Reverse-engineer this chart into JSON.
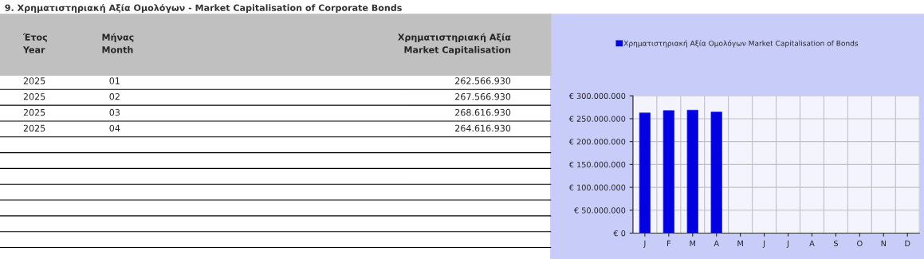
{
  "chart_data": {
    "type": "bar",
    "title": "9. Χρηματιστηριακή Αξία Ομολόγων - Market Capitalisation of Corporate Bonds",
    "categories": [
      "J",
      "F",
      "M",
      "A",
      "M",
      "J",
      "J",
      "A",
      "S",
      "O",
      "N",
      "D"
    ],
    "series": [
      {
        "name": "Χρηματιστηριακή Αξία Ομολόγων Market Capitalisation of Bonds",
        "color": "#0000e0",
        "values": [
          262566930,
          267566930,
          268616930,
          264616930,
          null,
          null,
          null,
          null,
          null,
          null,
          null,
          null
        ]
      }
    ],
    "ylim": [
      0,
      300000000
    ],
    "yticks": [
      {
        "value": 0,
        "label": "€ 0"
      },
      {
        "value": 50000000,
        "label": "€ 50.000.000"
      },
      {
        "value": 100000000,
        "label": "€ 100.000.000"
      },
      {
        "value": 150000000,
        "label": "€ 150.000.000"
      },
      {
        "value": 200000000,
        "label": "€ 200.000.000"
      },
      {
        "value": 250000000,
        "label": "€ 250.000.000"
      },
      {
        "value": 300000000,
        "label": "€ 300.000.000"
      }
    ],
    "grid": true,
    "legend": "top",
    "annotations": [
      "Έτος\nYear",
      "Μήνας\nMonth",
      "Χρηματιστηριακή Αξία\nMarket Capitalisation",
      "2025",
      "01",
      "262.566.930",
      "2025",
      "02",
      "267.566.930",
      "2025",
      "03",
      "268.616.930",
      "2025",
      "04",
      "264.616.930"
    ]
  }
}
